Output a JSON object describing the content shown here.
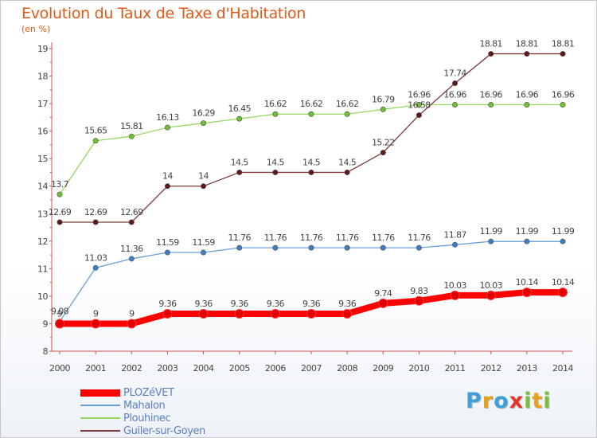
{
  "chart_data": {
    "type": "line",
    "title": "Evolution du Taux de Taxe d'Habitation",
    "unit_label": "(en %)",
    "x": [
      "2000",
      "2001",
      "2002",
      "2003",
      "2004",
      "2005",
      "2006",
      "2007",
      "2008",
      "2009",
      "2010",
      "2011",
      "2012",
      "2013",
      "2014"
    ],
    "ylim": [
      8,
      19
    ],
    "yticks": [
      8,
      9,
      10,
      11,
      12,
      13,
      14,
      15,
      16,
      17,
      18,
      19
    ],
    "grid": false,
    "legend_position": "bottom-left",
    "series": [
      {
        "name": "Plouhinec",
        "color": "#93d85d",
        "marker": "#6cc031",
        "width": 1.3,
        "values": [
          13.7,
          15.65,
          15.81,
          16.13,
          16.29,
          16.45,
          16.62,
          16.62,
          16.62,
          16.79,
          16.96,
          16.96,
          16.96,
          16.96,
          16.96
        ],
        "labels": [
          "13.7",
          "15.65",
          "15.81",
          "16.13",
          "16.29",
          "16.45",
          "16.62",
          "16.62",
          "16.62",
          "16.79",
          "16.96",
          "16.96",
          "16.96",
          "16.96",
          "16.96"
        ]
      },
      {
        "name": "Guiler-sur-Goyen",
        "color": "#7c3a3a",
        "marker": "#5e1818",
        "width": 1.3,
        "values": [
          12.69,
          12.69,
          12.69,
          14,
          14,
          14.5,
          14.5,
          14.5,
          14.5,
          15.22,
          16.58,
          17.74,
          18.81,
          18.81,
          18.81
        ],
        "labels": [
          "12.69",
          "12.69",
          "12.69",
          "14",
          "14",
          "14.5",
          "14.5",
          "14.5",
          "14.5",
          "15.22",
          "16.58",
          "17.74",
          "18.81",
          "18.81",
          "18.81"
        ]
      },
      {
        "name": "Mahalon",
        "color": "#6a9fd6",
        "marker": "#3d7fc2",
        "width": 1.3,
        "values": [
          9.08,
          11.03,
          11.36,
          11.59,
          11.59,
          11.76,
          11.76,
          11.76,
          11.76,
          11.76,
          11.76,
          11.87,
          11.99,
          11.99,
          11.99
        ],
        "labels": [
          "9.08",
          "11.03",
          "11.36",
          "11.59",
          "11.59",
          "11.76",
          "11.76",
          "11.76",
          "11.76",
          "11.76",
          "11.76",
          "11.87",
          "11.99",
          "11.99",
          "11.99"
        ]
      },
      {
        "name": "PLOZéVET",
        "color": "#ff0000",
        "marker": "#e00000",
        "width": 8,
        "values": [
          9,
          9,
          9,
          9.36,
          9.36,
          9.36,
          9.36,
          9.36,
          9.36,
          9.74,
          9.83,
          10.03,
          10.03,
          10.14,
          10.14
        ],
        "labels": [
          "9",
          "9",
          "9",
          "9.36",
          "9.36",
          "9.36",
          "9.36",
          "9.36",
          "9.36",
          "9.74",
          "9.83",
          "10.03",
          "10.03",
          "10.14",
          "10.14"
        ]
      }
    ],
    "legend_order": [
      "PLOZéVET",
      "Mahalon",
      "Plouhinec",
      "Guiler-sur-Goyen"
    ]
  },
  "logo": {
    "letters": [
      {
        "ch": "P",
        "color": "#3f9fd8"
      },
      {
        "ch": "r",
        "color": "#e8a21a"
      },
      {
        "ch": "o",
        "color": "#3f9fd8"
      },
      {
        "ch": "x",
        "color": "#e03a2a"
      },
      {
        "ch": "i",
        "color": "#7bbf3a"
      },
      {
        "ch": "t",
        "color": "#e8a21a"
      },
      {
        "ch": "i",
        "color": "#7bbf3a"
      }
    ]
  }
}
